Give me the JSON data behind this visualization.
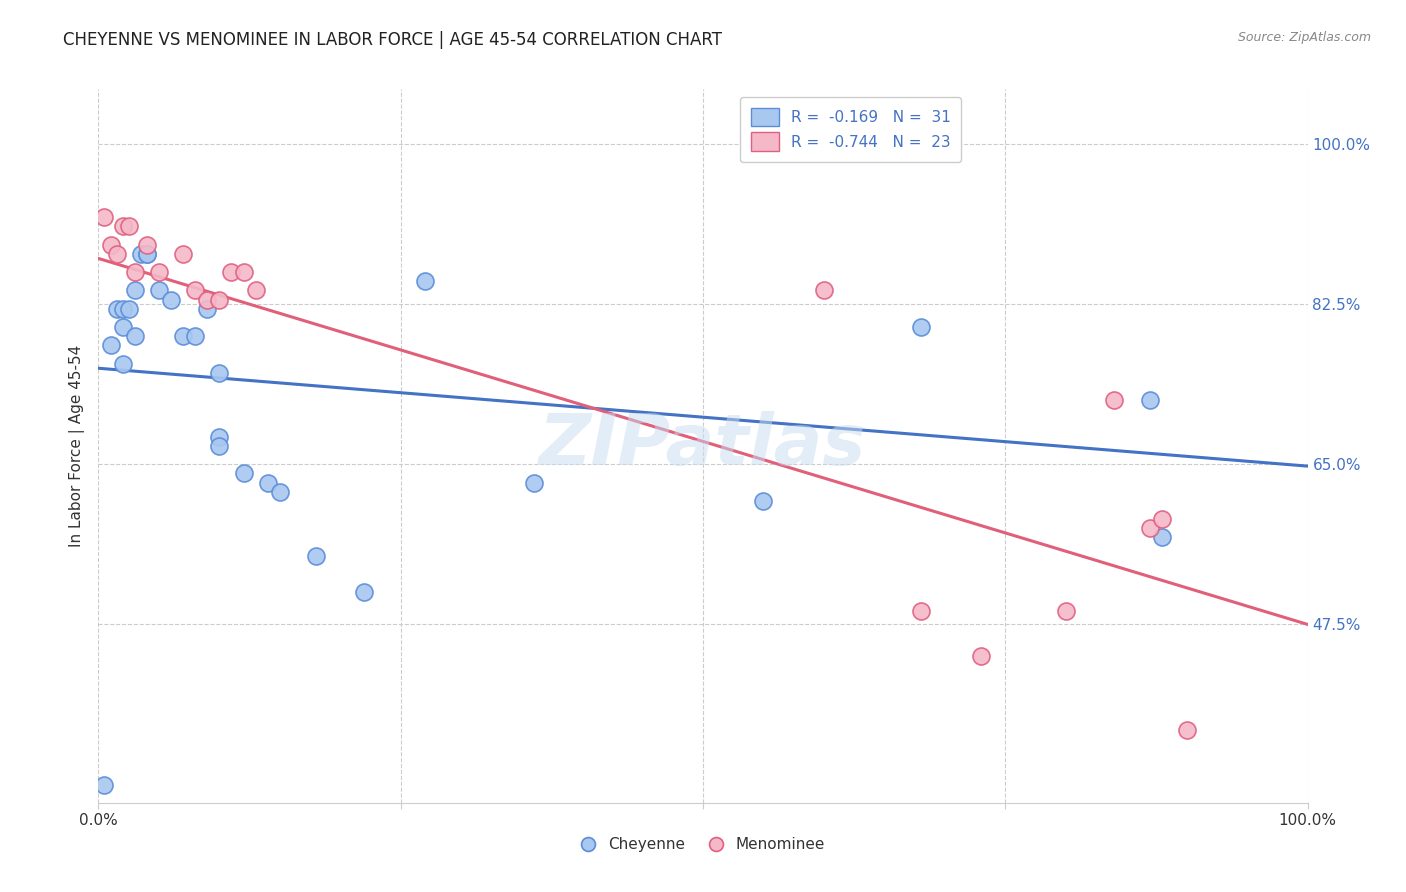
{
  "title": "CHEYENNE VS MENOMINEE IN LABOR FORCE | AGE 45-54 CORRELATION CHART",
  "source": "Source: ZipAtlas.com",
  "ylabel": "In Labor Force | Age 45-54",
  "ytick_labels": [
    "100.0%",
    "82.5%",
    "65.0%",
    "47.5%"
  ],
  "ytick_values": [
    1.0,
    0.825,
    0.65,
    0.475
  ],
  "xlim": [
    0.0,
    1.0
  ],
  "ylim": [
    0.28,
    1.06
  ],
  "cheyenne_color": "#A8C8F0",
  "menominee_color": "#F5B8C8",
  "cheyenne_edge_color": "#5B8DD9",
  "menominee_edge_color": "#E06080",
  "cheyenne_line_color": "#4472C4",
  "menominee_line_color": "#E0607A",
  "cheyenne_R": -0.169,
  "cheyenne_N": 31,
  "menominee_R": -0.744,
  "menominee_N": 23,
  "cheyenne_x": [
    0.005,
    0.01,
    0.015,
    0.02,
    0.02,
    0.02,
    0.025,
    0.03,
    0.03,
    0.035,
    0.04,
    0.04,
    0.05,
    0.06,
    0.07,
    0.08,
    0.09,
    0.1,
    0.1,
    0.1,
    0.12,
    0.14,
    0.15,
    0.18,
    0.22,
    0.27,
    0.36,
    0.55,
    0.68,
    0.87,
    0.88
  ],
  "cheyenne_y": [
    0.3,
    0.78,
    0.82,
    0.82,
    0.8,
    0.76,
    0.82,
    0.84,
    0.79,
    0.88,
    0.88,
    0.88,
    0.84,
    0.83,
    0.79,
    0.79,
    0.82,
    0.75,
    0.68,
    0.67,
    0.64,
    0.63,
    0.62,
    0.55,
    0.51,
    0.85,
    0.63,
    0.61,
    0.8,
    0.72,
    0.57
  ],
  "menominee_x": [
    0.005,
    0.01,
    0.015,
    0.02,
    0.025,
    0.03,
    0.04,
    0.05,
    0.07,
    0.08,
    0.09,
    0.1,
    0.11,
    0.12,
    0.13,
    0.6,
    0.68,
    0.73,
    0.8,
    0.84,
    0.87,
    0.88,
    0.9
  ],
  "menominee_y": [
    0.92,
    0.89,
    0.88,
    0.91,
    0.91,
    0.86,
    0.89,
    0.86,
    0.88,
    0.84,
    0.83,
    0.83,
    0.86,
    0.86,
    0.84,
    0.84,
    0.49,
    0.44,
    0.49,
    0.72,
    0.58,
    0.59,
    0.36
  ],
  "background_color": "#FFFFFF",
  "grid_color": "#CCCCCC",
  "title_fontsize": 12,
  "axis_fontsize": 10,
  "legend_fontsize": 11,
  "watermark": "ZIPatlas",
  "cheyenne_line_start_y": 0.755,
  "cheyenne_line_end_y": 0.648,
  "menominee_line_start_y": 0.875,
  "menominee_line_end_y": 0.475
}
